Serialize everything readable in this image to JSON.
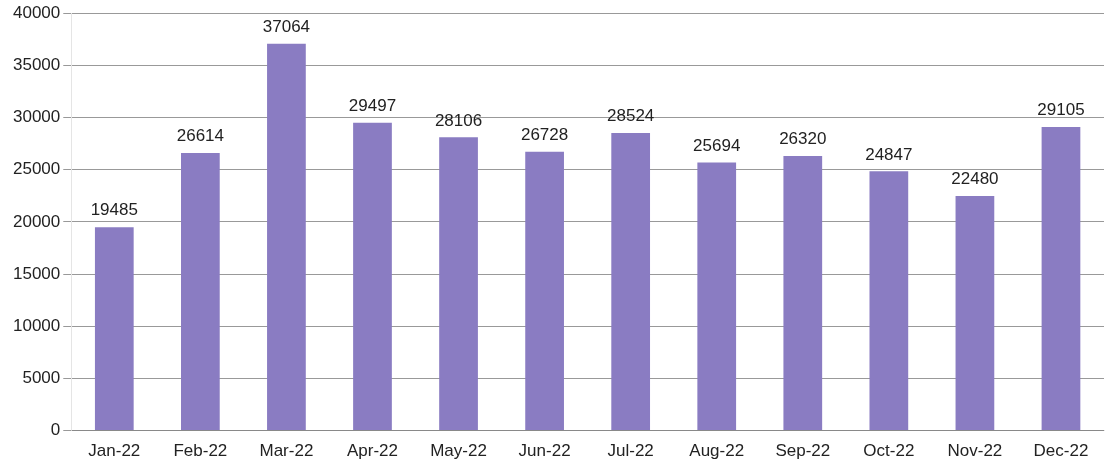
{
  "chart_data": {
    "type": "bar",
    "categories": [
      "Jan-22",
      "Feb-22",
      "Mar-22",
      "Apr-22",
      "May-22",
      "Jun-22",
      "Jul-22",
      "Aug-22",
      "Sep-22",
      "Oct-22",
      "Nov-22",
      "Dec-22"
    ],
    "values": [
      19485,
      26614,
      37064,
      29497,
      28106,
      26728,
      28524,
      25694,
      26320,
      24847,
      22480,
      29105
    ],
    "color": "#8a7cc2",
    "ylim": [
      0,
      40000
    ],
    "yticks": [
      0,
      5000,
      10000,
      15000,
      20000,
      25000,
      30000,
      35000,
      40000
    ],
    "grid": "y",
    "data_labels": true,
    "legend": false
  }
}
